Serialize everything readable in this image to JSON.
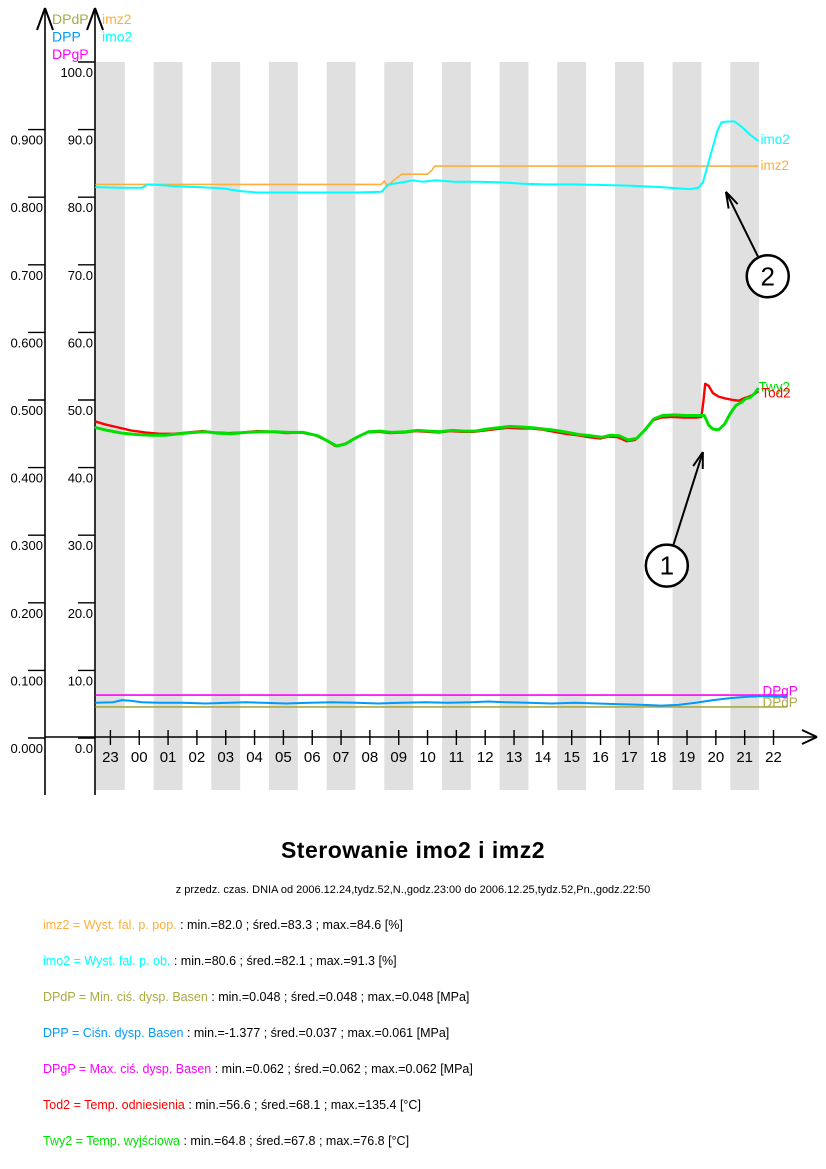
{
  "title": "Sterowanie imo2 i imz2",
  "subtitle": "z przedz. czas. DNIA od 2006.12.24,tydz.52,N.,godz.23:00 do 2006.12.25,tydz.52,Pn.,godz.22:50",
  "chart_data": {
    "type": "line",
    "stripe_color": "#E0E0E0",
    "x_axis": {
      "labels": [
        "23",
        "00",
        "01",
        "02",
        "03",
        "04",
        "05",
        "06",
        "07",
        "08",
        "09",
        "10",
        "11",
        "12",
        "13",
        "14",
        "15",
        "16",
        "17",
        "18",
        "19",
        "20",
        "21",
        "22"
      ]
    },
    "y_axis_left": {
      "unit": "MPa",
      "range": [
        0.0,
        1.0
      ],
      "labels": [
        "0.000",
        "0.100",
        "0.200",
        "0.300",
        "0.400",
        "0.500",
        "0.600",
        "0.700",
        "0.800",
        "0.900"
      ]
    },
    "y_axis_right": {
      "range": [
        0,
        100
      ],
      "labels": [
        "0.0",
        "10.0",
        "20.0",
        "30.0",
        "40.0",
        "50.0",
        "60.0",
        "70.0",
        "80.0",
        "90.0",
        "100.0"
      ]
    },
    "axis_legend_left": [
      {
        "text": "DPdP",
        "color": "#AAAA44"
      },
      {
        "text": "DPP",
        "color": "#0099FF"
      },
      {
        "text": "DPgP",
        "color": "#FF00FF"
      }
    ],
    "axis_legend_right": [
      {
        "text": "imz2",
        "color": "#FFAE3C"
      },
      {
        "text": "imo2",
        "color": "#00FFFF"
      }
    ],
    "series": [
      {
        "name": "DPgP",
        "color": "#FF00FF",
        "width": 1.6,
        "points": [
          [
            0,
            6.35
          ],
          [
            23.95,
            6.35
          ]
        ]
      },
      {
        "name": "DPdP",
        "color": "#AAAA44",
        "width": 1.6,
        "points": [
          [
            0,
            4.6
          ],
          [
            23.95,
            4.6
          ]
        ]
      },
      {
        "name": "DPP",
        "color": "#0099FF",
        "width": 2,
        "points": [
          [
            0,
            5.2
          ],
          [
            0.6,
            5.3
          ],
          [
            0.9,
            5.6
          ],
          [
            1.2,
            5.5
          ],
          [
            1.6,
            5.3
          ],
          [
            2.2,
            5.2
          ],
          [
            3.0,
            5.2
          ],
          [
            3.8,
            5.1
          ],
          [
            4.6,
            5.2
          ],
          [
            5.2,
            5.3
          ],
          [
            5.8,
            5.2
          ],
          [
            6.6,
            5.1
          ],
          [
            7.4,
            5.2
          ],
          [
            8.2,
            5.3
          ],
          [
            9.0,
            5.2
          ],
          [
            9.8,
            5.1
          ],
          [
            10.6,
            5.2
          ],
          [
            11.4,
            5.3
          ],
          [
            12.2,
            5.2
          ],
          [
            13.0,
            5.3
          ],
          [
            13.6,
            5.4
          ],
          [
            14.2,
            5.3
          ],
          [
            15.0,
            5.2
          ],
          [
            15.8,
            5.1
          ],
          [
            16.6,
            5.2
          ],
          [
            17.4,
            5.1
          ],
          [
            18.2,
            5.0
          ],
          [
            19.0,
            4.9
          ],
          [
            19.6,
            4.8
          ],
          [
            20.2,
            4.9
          ],
          [
            20.8,
            5.2
          ],
          [
            21.4,
            5.6
          ],
          [
            22.0,
            5.9
          ],
          [
            22.6,
            6.1
          ],
          [
            23.2,
            6.2
          ],
          [
            23.6,
            6.1
          ],
          [
            23.95,
            6.1
          ]
        ]
      },
      {
        "name": "imz2",
        "color": "#FFAE3C",
        "width": 1.6,
        "points": [
          [
            0,
            81.9
          ],
          [
            2,
            81.9
          ],
          [
            4,
            81.9
          ],
          [
            6,
            81.9
          ],
          [
            8,
            81.9
          ],
          [
            9.9,
            81.9
          ],
          [
            10.0,
            82.4
          ],
          [
            10.1,
            81.6
          ],
          [
            10.25,
            82.2
          ],
          [
            10.45,
            82.9
          ],
          [
            10.6,
            83.4
          ],
          [
            11.5,
            83.4
          ],
          [
            11.65,
            84.0
          ],
          [
            11.75,
            84.6
          ],
          [
            13,
            84.6
          ],
          [
            16,
            84.6
          ],
          [
            19,
            84.6
          ],
          [
            22.95,
            84.6
          ]
        ]
      },
      {
        "name": "imo2",
        "color": "#00FFFF",
        "width": 2,
        "points": [
          [
            0,
            81.5
          ],
          [
            0.8,
            81.4
          ],
          [
            1.6,
            81.4
          ],
          [
            1.8,
            81.9
          ],
          [
            2.2,
            81.8
          ],
          [
            2.8,
            81.6
          ],
          [
            3.6,
            81.5
          ],
          [
            4.4,
            81.3
          ],
          [
            5.0,
            80.9
          ],
          [
            5.6,
            80.7
          ],
          [
            6.6,
            80.7
          ],
          [
            7.8,
            80.7
          ],
          [
            9.0,
            80.7
          ],
          [
            9.9,
            80.8
          ],
          [
            10.15,
            81.9
          ],
          [
            10.5,
            82.1
          ],
          [
            11.0,
            82.5
          ],
          [
            11.3,
            82.3
          ],
          [
            11.8,
            82.5
          ],
          [
            12.4,
            82.3
          ],
          [
            13.2,
            82.3
          ],
          [
            14.0,
            82.2
          ],
          [
            14.8,
            82.0
          ],
          [
            15.6,
            81.9
          ],
          [
            16.6,
            81.9
          ],
          [
            17.6,
            81.8
          ],
          [
            18.6,
            81.7
          ],
          [
            19.6,
            81.5
          ],
          [
            20.2,
            81.3
          ],
          [
            20.6,
            81.2
          ],
          [
            20.9,
            81.4
          ],
          [
            21.05,
            82.2
          ],
          [
            21.3,
            86.0
          ],
          [
            21.55,
            89.8
          ],
          [
            21.7,
            91.1
          ],
          [
            21.9,
            91.2
          ],
          [
            22.15,
            91.2
          ],
          [
            22.4,
            90.4
          ],
          [
            22.7,
            89.2
          ],
          [
            22.95,
            88.4
          ]
        ]
      },
      {
        "name": "Tod2",
        "color": "#FF0000",
        "width": 2.4,
        "points": [
          [
            0,
            46.8
          ],
          [
            0.3,
            46.4
          ],
          [
            0.7,
            46.0
          ],
          [
            1.2,
            45.5
          ],
          [
            1.7,
            45.2
          ],
          [
            2.2,
            45.0
          ],
          [
            2.7,
            45.0
          ],
          [
            3.2,
            45.2
          ],
          [
            3.7,
            45.4
          ],
          [
            4.1,
            45.2
          ],
          [
            4.6,
            45.1
          ],
          [
            5.1,
            45.2
          ],
          [
            5.6,
            45.4
          ],
          [
            6.1,
            45.3
          ],
          [
            6.6,
            45.1
          ],
          [
            7.1,
            45.2
          ],
          [
            7.6,
            44.8
          ],
          [
            8.0,
            44.0
          ],
          [
            8.3,
            43.2
          ],
          [
            8.6,
            43.4
          ],
          [
            9.0,
            44.4
          ],
          [
            9.4,
            45.2
          ],
          [
            9.8,
            45.3
          ],
          [
            10.2,
            45.1
          ],
          [
            10.7,
            45.2
          ],
          [
            11.1,
            45.4
          ],
          [
            11.5,
            45.3
          ],
          [
            11.9,
            45.2
          ],
          [
            12.3,
            45.4
          ],
          [
            12.7,
            45.3
          ],
          [
            13.1,
            45.3
          ],
          [
            13.5,
            45.5
          ],
          [
            13.9,
            45.7
          ],
          [
            14.3,
            45.9
          ],
          [
            14.7,
            45.8
          ],
          [
            15.1,
            45.8
          ],
          [
            15.5,
            45.6
          ],
          [
            15.9,
            45.3
          ],
          [
            16.3,
            45.0
          ],
          [
            16.7,
            44.8
          ],
          [
            17.1,
            44.5
          ],
          [
            17.5,
            44.3
          ],
          [
            17.8,
            44.6
          ],
          [
            18.1,
            44.5
          ],
          [
            18.4,
            43.9
          ],
          [
            18.7,
            44.1
          ],
          [
            19.0,
            45.4
          ],
          [
            19.3,
            47.0
          ],
          [
            19.6,
            47.4
          ],
          [
            20.0,
            47.5
          ],
          [
            20.4,
            47.4
          ],
          [
            20.8,
            47.4
          ],
          [
            21.0,
            47.5
          ],
          [
            21.07,
            49.8
          ],
          [
            21.13,
            52.4
          ],
          [
            21.25,
            52.1
          ],
          [
            21.4,
            51.0
          ],
          [
            21.6,
            50.5
          ],
          [
            21.85,
            50.2
          ],
          [
            22.1,
            50.0
          ],
          [
            22.3,
            49.9
          ],
          [
            22.5,
            50.3
          ],
          [
            22.65,
            50.5
          ],
          [
            22.8,
            50.8
          ],
          [
            22.95,
            51.2
          ]
        ]
      },
      {
        "name": "Twy2",
        "color": "#00E000",
        "width": 3,
        "points": [
          [
            0,
            45.9
          ],
          [
            0.4,
            45.5
          ],
          [
            0.9,
            45.1
          ],
          [
            1.4,
            44.9
          ],
          [
            1.9,
            44.8
          ],
          [
            2.4,
            44.8
          ],
          [
            2.9,
            45.0
          ],
          [
            3.4,
            45.2
          ],
          [
            3.8,
            45.3
          ],
          [
            4.2,
            45.1
          ],
          [
            4.7,
            45.0
          ],
          [
            5.2,
            45.2
          ],
          [
            5.7,
            45.3
          ],
          [
            6.2,
            45.3
          ],
          [
            6.7,
            45.2
          ],
          [
            7.2,
            45.2
          ],
          [
            7.7,
            44.7
          ],
          [
            8.05,
            43.9
          ],
          [
            8.35,
            43.2
          ],
          [
            8.65,
            43.5
          ],
          [
            9.05,
            44.5
          ],
          [
            9.45,
            45.3
          ],
          [
            9.85,
            45.4
          ],
          [
            10.25,
            45.2
          ],
          [
            10.75,
            45.3
          ],
          [
            11.15,
            45.5
          ],
          [
            11.55,
            45.4
          ],
          [
            11.95,
            45.3
          ],
          [
            12.35,
            45.5
          ],
          [
            12.75,
            45.4
          ],
          [
            13.15,
            45.4
          ],
          [
            13.55,
            45.7
          ],
          [
            13.95,
            45.9
          ],
          [
            14.35,
            46.1
          ],
          [
            14.75,
            46.0
          ],
          [
            15.15,
            45.9
          ],
          [
            15.55,
            45.7
          ],
          [
            15.95,
            45.5
          ],
          [
            16.35,
            45.2
          ],
          [
            16.75,
            44.9
          ],
          [
            17.15,
            44.7
          ],
          [
            17.55,
            44.5
          ],
          [
            17.85,
            44.8
          ],
          [
            18.15,
            44.7
          ],
          [
            18.45,
            44.1
          ],
          [
            18.75,
            44.3
          ],
          [
            19.05,
            45.6
          ],
          [
            19.35,
            47.2
          ],
          [
            19.65,
            47.7
          ],
          [
            20.05,
            47.8
          ],
          [
            20.45,
            47.7
          ],
          [
            20.85,
            47.7
          ],
          [
            21.1,
            47.7
          ],
          [
            21.25,
            46.3
          ],
          [
            21.4,
            45.7
          ],
          [
            21.6,
            45.6
          ],
          [
            21.8,
            46.4
          ],
          [
            22.0,
            48.0
          ],
          [
            22.2,
            49.2
          ],
          [
            22.4,
            49.7
          ],
          [
            22.55,
            50.2
          ],
          [
            22.7,
            50.4
          ],
          [
            22.85,
            51.0
          ],
          [
            22.95,
            51.6
          ]
        ]
      }
    ],
    "end_labels": [
      {
        "text": "imo2",
        "color": "#00FFFF",
        "u": 23.05,
        "v": 88.6
      },
      {
        "text": "imz2",
        "color": "#FFAE3C",
        "u": 23.05,
        "v": 84.8
      },
      {
        "text": "Twy2",
        "color": "#00E000",
        "u": 22.98,
        "v": 52.0
      },
      {
        "text": "Tod2",
        "color": "#FF0000",
        "u": 23.08,
        "v": 51.1
      },
      {
        "text": "DPgP",
        "color": "#FF00FF",
        "u": 23.12,
        "v": 7.0
      },
      {
        "text": "DPdP",
        "color": "#AAAA44",
        "u": 23.12,
        "v": 5.3
      }
    ],
    "annotations": [
      {
        "label": "1",
        "circle_u": 19.8,
        "circle_v": 25.5,
        "tip_u": 21.05,
        "tip_v": 42.3
      },
      {
        "label": "2",
        "circle_u": 23.3,
        "circle_v": 68.3,
        "tip_u": 21.85,
        "tip_v": 80.8
      }
    ]
  },
  "legend": [
    {
      "name": "imz2",
      "color": "#FFAE3C",
      "label": "imz2 = Wyst. fal. p. pop.",
      "stats": " : min.=82.0 ; śred.=83.3 ; max.=84.6 [%]"
    },
    {
      "name": "imo2",
      "color": "#00FFFF",
      "label": "imo2 = Wyst. fal. p. ob.",
      "stats": " : min.=80.6 ; śred.=82.1 ; max.=91.3 [%]"
    },
    {
      "name": "DPdP",
      "color": "#AAAA44",
      "label": "DPdP = Min. ciś. dysp. Basen",
      "stats": " : min.=0.048 ; śred.=0.048 ; max.=0.048 [MPa]"
    },
    {
      "name": "DPP",
      "color": "#0099FF",
      "label": "DPP = Ciśn. dysp. Basen",
      "stats": " : min.=-1.377 ; śred.=0.037 ; max.=0.061 [MPa]"
    },
    {
      "name": "DPgP",
      "color": "#FF00FF",
      "label": "DPgP = Max. ciś. dysp. Basen",
      "stats": " : min.=0.062 ; śred.=0.062 ; max.=0.062 [MPa]"
    },
    {
      "name": "Tod2",
      "color": "#FF0000",
      "label": "Tod2 = Temp. odniesienia",
      "stats": " : min.=56.6 ; śred.=68.1 ; max.=135.4 [°C]"
    },
    {
      "name": "Twy2",
      "color": "#00E000",
      "label": "Twy2 = Temp. wyjściowa",
      "stats": " : min.=64.8 ; śred.=67.8 ; max.=76.8 [°C]"
    }
  ]
}
